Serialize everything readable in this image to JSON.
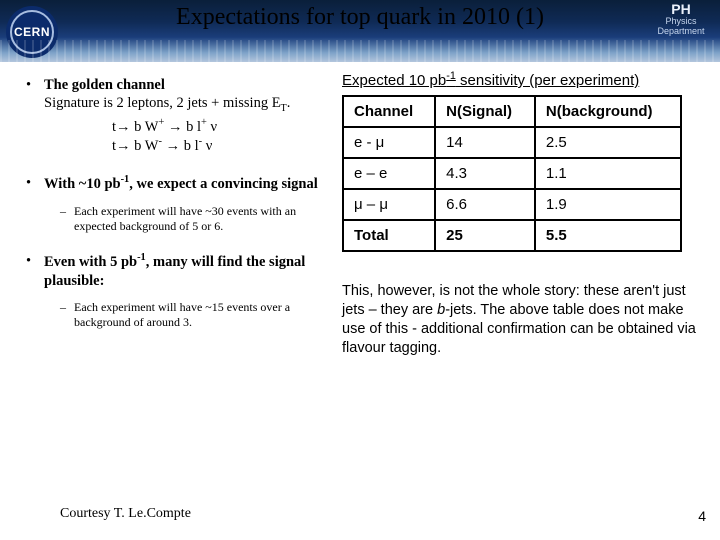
{
  "header": {
    "title": "Expectations for top quark in 2010 (1)",
    "cern_label": "CERN",
    "ph_top": "PH",
    "ph_line1": "Physics",
    "ph_line2": "Department",
    "titlebar_gradient_top": "#0a1f3a",
    "titlebar_gradient_bottom": "#b3c6dd"
  },
  "left": {
    "b1_pre": "The golden channel",
    "b1_line1": "Signature is 2 leptons, 2 jets + missing E",
    "b1_sub": "T",
    "b1_tail": ".",
    "eq1": "t→ b W",
    "eq1_sup": "+",
    "eq1_mid": " → b l",
    "eq1_sup2": "+",
    "eq1_end": " ν",
    "eq2": "t→ b W",
    "eq2_sup": "-",
    "eq2_mid": " → b l",
    "eq2_sup2": "-",
    "eq2_end": " ν",
    "b2_pre": "With ~10 pb",
    "b2_sup": "-1",
    "b2_post": ", we expect a convincing signal",
    "b2_sub": "Each experiment will have ~30 events with an expected background of 5 or 6.",
    "b3_pre": "Even with 5 pb",
    "b3_sup": "-1",
    "b3_post": ", many will find the signal plausible:",
    "b3_sub": "Each experiment will have ~15 events over a background of around 3."
  },
  "table": {
    "caption_pre": "Expected 10 pb",
    "caption_sup": "-1",
    "caption_post": " sensitivity (per experiment)",
    "columns": [
      "Channel",
      "N(Signal)",
      "N(background)"
    ],
    "rows": [
      {
        "c0": "e - μ",
        "c1": "14",
        "c2": "2.5"
      },
      {
        "c0": "e – e",
        "c1": "4.3",
        "c2": "1.1"
      },
      {
        "c0": "μ – μ",
        "c1": "6.6",
        "c2": "1.9"
      },
      {
        "c0": "Total",
        "c1": "25",
        "c2": "5.5",
        "bold": true
      }
    ],
    "border_color": "#000000",
    "font_family": "Arial"
  },
  "note_pre": "This, however, is not the whole story: these aren't just jets – they are ",
  "note_em": "b",
  "note_post": "-jets.  The above table does not make use of this - additional confirmation can be obtained via flavour tagging.",
  "footer": {
    "courtesy": "Courtesy T. Le.Compte",
    "page": "4"
  }
}
